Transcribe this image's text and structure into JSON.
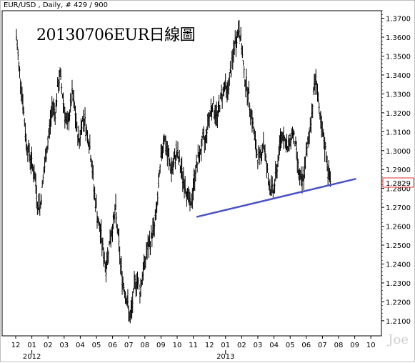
{
  "header": {
    "symbol_info": "EUR/USD , Daily, # 429 / 900",
    "watermark": "Joe"
  },
  "chart_data": {
    "type": "bar",
    "subtype": "ohlc",
    "title": "20130706EUR日線圖",
    "xlabel": "",
    "ylabel": "",
    "ylim": [
      1.202,
      1.374
    ],
    "y_ticks": [
      1.21,
      1.22,
      1.23,
      1.24,
      1.25,
      1.26,
      1.27,
      1.28,
      1.29,
      1.3,
      1.31,
      1.32,
      1.33,
      1.34,
      1.35,
      1.36,
      1.37
    ],
    "y_tick_labels": [
      "1.2100",
      "1.2200",
      "1.2300",
      "1.2400",
      "1.2500",
      "1.2600",
      "1.2700",
      "1.2800",
      "1.2900",
      "1.3000",
      "1.3100",
      "1.3200",
      "1.3300",
      "1.3400",
      "1.3500",
      "1.3600",
      "1.3700"
    ],
    "x_tick_labels": [
      "12",
      "01",
      "02",
      "03",
      "04",
      "05",
      "06",
      "07",
      "08",
      "09",
      "10",
      "11",
      "12",
      "01",
      "02",
      "03",
      "04",
      "05",
      "06",
      "07",
      "08",
      "09",
      "10"
    ],
    "year_labels": [
      {
        "label": "2012",
        "month_index": 1
      },
      {
        "label": "2013",
        "month_index": 13
      }
    ],
    "price_path": [
      [
        0.0,
        1.36
      ],
      [
        0.15,
        1.345
      ],
      [
        0.3,
        1.335
      ],
      [
        0.45,
        1.32
      ],
      [
        0.6,
        1.305
      ],
      [
        0.75,
        1.3
      ],
      [
        0.9,
        1.295
      ],
      [
        1.05,
        1.29
      ],
      [
        1.2,
        1.282
      ],
      [
        1.35,
        1.27
      ],
      [
        1.5,
        1.272
      ],
      [
        1.65,
        1.285
      ],
      [
        1.8,
        1.295
      ],
      [
        1.95,
        1.305
      ],
      [
        2.1,
        1.315
      ],
      [
        2.25,
        1.325
      ],
      [
        2.4,
        1.32
      ],
      [
        2.55,
        1.332
      ],
      [
        2.7,
        1.34
      ],
      [
        2.85,
        1.33
      ],
      [
        3.0,
        1.32
      ],
      [
        3.15,
        1.312
      ],
      [
        3.3,
        1.32
      ],
      [
        3.45,
        1.33
      ],
      [
        3.6,
        1.322
      ],
      [
        3.75,
        1.31
      ],
      [
        3.9,
        1.305
      ],
      [
        4.05,
        1.315
      ],
      [
        4.2,
        1.318
      ],
      [
        4.35,
        1.31
      ],
      [
        4.5,
        1.305
      ],
      [
        4.65,
        1.295
      ],
      [
        4.8,
        1.28
      ],
      [
        4.95,
        1.27
      ],
      [
        5.1,
        1.26
      ],
      [
        5.25,
        1.255
      ],
      [
        5.4,
        1.245
      ],
      [
        5.55,
        1.238
      ],
      [
        5.7,
        1.248
      ],
      [
        5.85,
        1.255
      ],
      [
        6.0,
        1.262
      ],
      [
        6.15,
        1.268
      ],
      [
        6.3,
        1.255
      ],
      [
        6.45,
        1.24
      ],
      [
        6.6,
        1.23
      ],
      [
        6.75,
        1.225
      ],
      [
        6.9,
        1.218
      ],
      [
        7.05,
        1.21
      ],
      [
        7.2,
        1.22
      ],
      [
        7.35,
        1.23
      ],
      [
        7.5,
        1.232
      ],
      [
        7.65,
        1.225
      ],
      [
        7.8,
        1.234
      ],
      [
        7.95,
        1.24
      ],
      [
        8.1,
        1.248
      ],
      [
        8.25,
        1.25
      ],
      [
        8.4,
        1.256
      ],
      [
        8.55,
        1.26
      ],
      [
        8.7,
        1.27
      ],
      [
        8.85,
        1.285
      ],
      [
        9.0,
        1.3
      ],
      [
        9.15,
        1.308
      ],
      [
        9.3,
        1.3
      ],
      [
        9.45,
        1.295
      ],
      [
        9.6,
        1.29
      ],
      [
        9.75,
        1.292
      ],
      [
        9.9,
        1.3
      ],
      [
        10.05,
        1.295
      ],
      [
        10.2,
        1.29
      ],
      [
        10.35,
        1.285
      ],
      [
        10.5,
        1.28
      ],
      [
        10.65,
        1.275
      ],
      [
        10.8,
        1.27
      ],
      [
        10.95,
        1.28
      ],
      [
        11.1,
        1.29
      ],
      [
        11.25,
        1.295
      ],
      [
        11.4,
        1.3
      ],
      [
        11.55,
        1.305
      ],
      [
        11.7,
        1.305
      ],
      [
        11.85,
        1.315
      ],
      [
        12.0,
        1.32
      ],
      [
        12.15,
        1.325
      ],
      [
        12.3,
        1.32
      ],
      [
        12.45,
        1.318
      ],
      [
        12.6,
        1.325
      ],
      [
        12.75,
        1.33
      ],
      [
        12.9,
        1.335
      ],
      [
        13.05,
        1.33
      ],
      [
        13.2,
        1.338
      ],
      [
        13.35,
        1.345
      ],
      [
        13.5,
        1.355
      ],
      [
        13.65,
        1.36
      ],
      [
        13.8,
        1.365
      ],
      [
        13.95,
        1.355
      ],
      [
        14.1,
        1.34
      ],
      [
        14.25,
        1.335
      ],
      [
        14.4,
        1.328
      ],
      [
        14.55,
        1.32
      ],
      [
        14.7,
        1.31
      ],
      [
        14.85,
        1.3
      ],
      [
        15.0,
        1.295
      ],
      [
        15.15,
        1.298
      ],
      [
        15.3,
        1.305
      ],
      [
        15.45,
        1.295
      ],
      [
        15.6,
        1.285
      ],
      [
        15.75,
        1.28
      ],
      [
        15.9,
        1.278
      ],
      [
        16.05,
        1.285
      ],
      [
        16.2,
        1.295
      ],
      [
        16.35,
        1.305
      ],
      [
        16.5,
        1.31
      ],
      [
        16.65,
        1.305
      ],
      [
        16.8,
        1.3
      ],
      [
        16.95,
        1.305
      ],
      [
        17.1,
        1.31
      ],
      [
        17.25,
        1.305
      ],
      [
        17.4,
        1.295
      ],
      [
        17.55,
        1.285
      ],
      [
        17.7,
        1.282
      ],
      [
        17.85,
        1.29
      ],
      [
        18.0,
        1.3
      ],
      [
        18.15,
        1.31
      ],
      [
        18.3,
        1.32
      ],
      [
        18.45,
        1.335
      ],
      [
        18.6,
        1.338
      ],
      [
        18.75,
        1.32
      ],
      [
        18.9,
        1.31
      ],
      [
        19.05,
        1.305
      ],
      [
        19.2,
        1.298
      ],
      [
        19.3,
        1.29
      ],
      [
        19.4,
        1.285
      ],
      [
        19.47,
        1.2829
      ]
    ],
    "last_price": "1.2829",
    "trendline": {
      "color": "#4a52c8",
      "from": [
        11.2,
        1.265
      ],
      "to": [
        21.0,
        1.285
      ]
    },
    "bar_color": "#000000",
    "last_price_border": "#e03030",
    "grid": false
  }
}
